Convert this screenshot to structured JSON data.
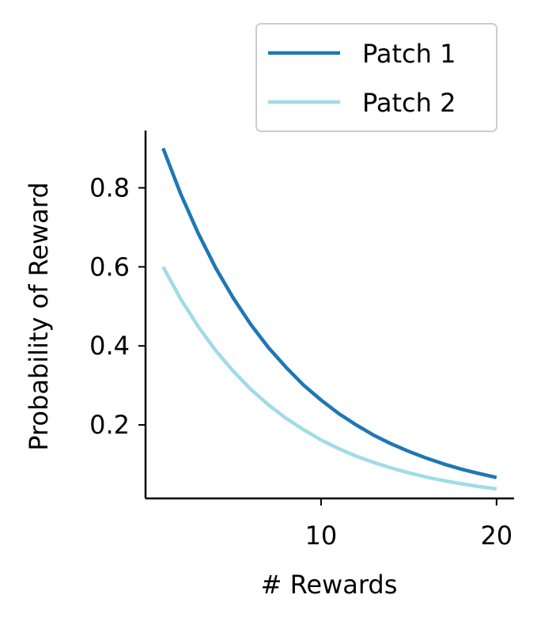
{
  "chart_data": {
    "type": "line",
    "title": "",
    "xlabel": "# Rewards",
    "ylabel": "Probability of Reward",
    "xlim": [
      0,
      21
    ],
    "ylim": [
      0.014,
      0.945
    ],
    "xticks": [
      10,
      20
    ],
    "xtick_labels": [
      "10",
      "20"
    ],
    "yticks": [
      0.2,
      0.4,
      0.6,
      0.8
    ],
    "ytick_labels": [
      "0.2",
      "0.4",
      "0.6",
      "0.8"
    ],
    "grid": false,
    "legend_position": "top-right",
    "x": [
      1,
      2,
      3,
      4,
      5,
      6,
      7,
      8,
      9,
      10,
      11,
      12,
      13,
      14,
      15,
      16,
      17,
      18,
      19,
      20
    ],
    "series": [
      {
        "name": "Patch 1",
        "color": "#1f77b4",
        "values": [
          0.9,
          0.785,
          0.685,
          0.597,
          0.521,
          0.454,
          0.396,
          0.346,
          0.301,
          0.263,
          0.229,
          0.2,
          0.174,
          0.152,
          0.133,
          0.116,
          0.101,
          0.088,
          0.077,
          0.067
        ]
      },
      {
        "name": "Patch 2",
        "color": "#a1dbe6",
        "values": [
          0.6,
          0.519,
          0.449,
          0.388,
          0.336,
          0.29,
          0.251,
          0.217,
          0.188,
          0.162,
          0.14,
          0.121,
          0.105,
          0.091,
          0.079,
          0.068,
          0.059,
          0.051,
          0.044,
          0.038
        ]
      }
    ]
  }
}
